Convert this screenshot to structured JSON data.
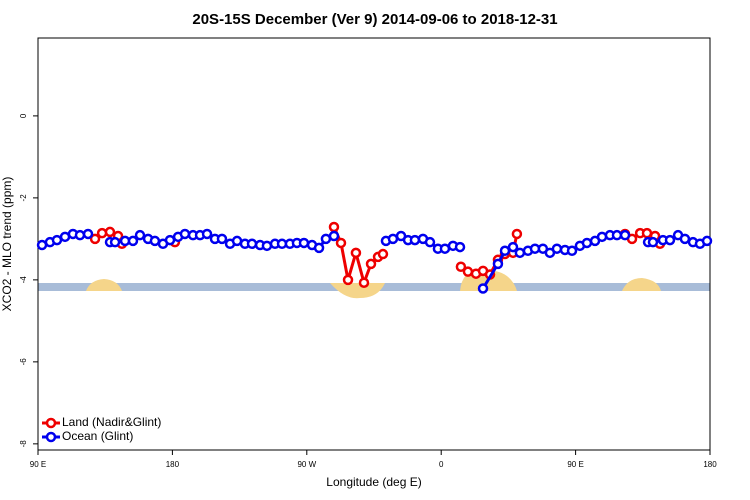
{
  "chart_data": {
    "type": "line",
    "title": "20S-15S December (Ver 9)   2014-09-06 to 2018-12-31",
    "xlabel": "Longitude (deg E)",
    "ylabel": "XCO2 - MLO trend (ppm)",
    "xlim": [
      90,
      540
    ],
    "ylim": [
      -8.15,
      1.9
    ],
    "xticks": [
      {
        "value": 90,
        "label": "90 E"
      },
      180,
      {
        "value": 270,
        "label": "90 W"
      },
      {
        "value": 360,
        "label": "0"
      },
      {
        "value": 450,
        "label": "90 E"
      },
      {
        "value": 540,
        "label": "180"
      }
    ],
    "yticks": [
      0,
      -2,
      -4,
      -6,
      -8
    ],
    "legend": "bottom-left",
    "series": [
      {
        "name": "Land (Nadir&Glint)",
        "color": "#ee0000",
        "x": [
          128.2,
          132.9,
          138.2,
          143.6,
          146.2,
          null,
          181.7,
          null,
          288.2,
          292.9,
          297.6,
          302.9,
          308.3,
          313.0,
          317.7,
          321.0,
          null,
          373.2,
          377.9,
          383.3,
          388.0,
          392.7,
          398.0,
          402.7,
          408.1,
          410.7,
          null,
          483.1,
          487.8,
          493.2,
          497.8,
          503.2,
          506.5
        ],
        "values": [
          -3.0,
          -2.86,
          -2.83,
          -2.93,
          -3.12,
          null,
          -3.08,
          null,
          -2.71,
          -3.1,
          -4.0,
          -3.34,
          -4.07,
          -3.61,
          -3.44,
          -3.37,
          null,
          -3.68,
          -3.8,
          -3.85,
          -3.78,
          -3.87,
          -3.51,
          -3.37,
          -3.34,
          -2.88,
          null,
          -2.88,
          -3.0,
          -2.86,
          -2.86,
          -2.93,
          -3.12
        ]
      },
      {
        "name": "Ocean (Glint)",
        "color": "#0000ee",
        "x": [
          92.7,
          98.0,
          102.7,
          108.1,
          113.4,
          118.1,
          123.5,
          null,
          138.2,
          141.6,
          148.3,
          153.6,
          158.3,
          163.7,
          168.3,
          173.7,
          178.4,
          183.8,
          188.4,
          193.8,
          198.5,
          203.2,
          208.5,
          213.2,
          218.6,
          223.3,
          228.6,
          233.3,
          238.7,
          243.3,
          248.7,
          253.4,
          258.7,
          263.4,
          268.1,
          273.5,
          278.2,
          282.8,
          288.2,
          null,
          323.0,
          327.7,
          333.1,
          337.8,
          342.4,
          347.8,
          352.5,
          357.8,
          362.5,
          367.9,
          372.6,
          null,
          388.0,
          398.0,
          402.7,
          408.1,
          412.7,
          418.1,
          422.8,
          428.1,
          432.8,
          437.5,
          442.9,
          447.6,
          452.9,
          457.6,
          463.0,
          467.7,
          473.0,
          477.7,
          483.1,
          null,
          498.5,
          501.8,
          508.5,
          513.2,
          518.6,
          523.2,
          528.6,
          533.3,
          538.0
        ],
        "values": [
          -3.15,
          -3.08,
          -3.03,
          -2.95,
          -2.88,
          -2.91,
          -2.88,
          null,
          -3.08,
          -3.08,
          -3.05,
          -3.05,
          -2.91,
          -3.0,
          -3.05,
          -3.12,
          -3.03,
          -2.95,
          -2.88,
          -2.91,
          -2.91,
          -2.88,
          -3.0,
          -3.0,
          -3.12,
          -3.05,
          -3.12,
          -3.12,
          -3.15,
          -3.17,
          -3.12,
          -3.12,
          -3.12,
          -3.1,
          -3.1,
          -3.15,
          -3.22,
          -3.0,
          -2.93,
          null,
          -3.05,
          -3.0,
          -2.93,
          -3.03,
          -3.03,
          -3.0,
          -3.08,
          -3.24,
          -3.24,
          -3.17,
          -3.2,
          null,
          -4.21,
          -3.61,
          -3.29,
          -3.2,
          -3.34,
          -3.29,
          -3.24,
          -3.24,
          -3.34,
          -3.24,
          -3.27,
          -3.29,
          -3.17,
          -3.1,
          -3.05,
          -2.95,
          -2.91,
          -2.91,
          -2.91,
          null,
          -3.08,
          -3.08,
          -3.03,
          -3.03,
          -2.91,
          -3.0,
          -3.08,
          -3.12,
          -3.05
        ]
      }
    ]
  }
}
